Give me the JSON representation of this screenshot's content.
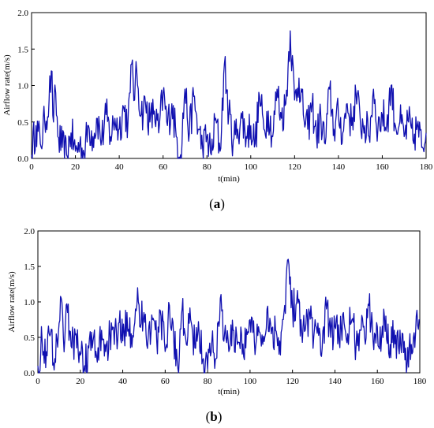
{
  "chart_data": [
    {
      "type": "line",
      "panel_label": "a",
      "xlabel": "t(min)",
      "ylabel": "Airflow rate(m/s)",
      "xlim": [
        0,
        180
      ],
      "ylim": [
        0,
        2.0
      ],
      "x_ticks": [
        "0",
        "20",
        "40",
        "60",
        "80",
        "100",
        "120",
        "140",
        "160",
        "180"
      ],
      "y_ticks": [
        "0.0",
        "0.5",
        "1.0",
        "1.5",
        "2.0"
      ],
      "grid": false,
      "color": "#1010b0",
      "x": [
        0,
        2,
        4,
        6,
        8,
        9,
        10,
        11,
        12,
        14,
        16,
        18,
        20,
        22,
        24,
        26,
        28,
        30,
        32,
        34,
        36,
        38,
        40,
        42,
        44,
        45,
        46,
        47,
        48,
        50,
        52,
        54,
        56,
        58,
        60,
        62,
        64,
        66,
        68,
        70,
        72,
        74,
        76,
        78,
        80,
        82,
        84,
        86,
        88,
        90,
        92,
        94,
        96,
        98,
        100,
        102,
        104,
        106,
        108,
        110,
        112,
        114,
        116,
        118,
        120,
        122,
        124,
        126,
        128,
        130,
        132,
        134,
        136,
        138,
        140,
        142,
        144,
        146,
        148,
        150,
        152,
        154,
        156,
        158,
        160,
        162,
        164,
        166,
        168,
        170,
        172,
        174,
        176,
        178,
        180
      ],
      "values": [
        0.05,
        0.45,
        0.2,
        0.5,
        0.8,
        1.2,
        0.5,
        0.9,
        0.3,
        0.15,
        0.05,
        0.35,
        0.1,
        0.2,
        0.05,
        0.45,
        0.3,
        0.55,
        0.25,
        0.6,
        0.3,
        0.55,
        0.4,
        0.7,
        0.5,
        0.9,
        1.35,
        0.8,
        1.2,
        0.6,
        0.75,
        0.5,
        0.65,
        0.35,
        0.9,
        0.45,
        0.75,
        0.3,
        0.05,
        0.95,
        0.35,
        0.85,
        0.4,
        0.15,
        0.3,
        0.05,
        0.55,
        0.1,
        1.3,
        0.6,
        0.25,
        0.4,
        0.55,
        0.3,
        0.45,
        0.2,
        0.85,
        0.4,
        0.65,
        0.3,
        0.95,
        0.55,
        0.75,
        1.75,
        0.8,
        1.1,
        0.6,
        0.4,
        0.75,
        0.3,
        0.55,
        0.2,
        0.95,
        0.4,
        0.6,
        0.35,
        0.75,
        0.45,
        0.9,
        0.5,
        0.45,
        0.3,
        0.95,
        0.4,
        0.6,
        0.45,
        1.0,
        0.45,
        0.5,
        0.3,
        0.5,
        0.25,
        0.45,
        0.15,
        0.35
      ]
    },
    {
      "type": "line",
      "panel_label": "b",
      "xlabel": "t(min)",
      "ylabel": "Airflow rate(m/s)",
      "xlim": [
        0,
        180
      ],
      "ylim": [
        0,
        2.0
      ],
      "x_ticks": [
        "0",
        "20",
        "40",
        "60",
        "80",
        "100",
        "120",
        "140",
        "160",
        "180"
      ],
      "y_ticks": [
        "0.0",
        "0.5",
        "1.0",
        "1.5",
        "2.0"
      ],
      "grid": false,
      "color": "#1010b0",
      "x": [
        0,
        2,
        4,
        6,
        8,
        10,
        11,
        12,
        14,
        16,
        18,
        20,
        22,
        24,
        26,
        28,
        30,
        32,
        34,
        36,
        38,
        40,
        42,
        44,
        46,
        47,
        48,
        50,
        52,
        54,
        56,
        58,
        60,
        62,
        64,
        66,
        68,
        70,
        72,
        74,
        76,
        78,
        80,
        82,
        84,
        86,
        88,
        90,
        92,
        94,
        96,
        98,
        100,
        102,
        104,
        106,
        108,
        110,
        112,
        114,
        116,
        118,
        120,
        122,
        124,
        126,
        128,
        130,
        132,
        134,
        136,
        138,
        140,
        142,
        144,
        146,
        148,
        150,
        152,
        154,
        156,
        158,
        160,
        162,
        164,
        166,
        168,
        170,
        172,
        174,
        176,
        178,
        180
      ],
      "values": [
        0.1,
        0.45,
        0.3,
        0.55,
        0.2,
        0.7,
        1.05,
        0.5,
        0.85,
        0.35,
        0.55,
        0.25,
        0.1,
        0.35,
        0.45,
        0.15,
        0.6,
        0.3,
        0.55,
        0.4,
        0.7,
        0.45,
        0.85,
        0.55,
        0.9,
        1.2,
        0.65,
        0.85,
        0.5,
        0.75,
        0.45,
        0.8,
        0.3,
        0.95,
        0.5,
        0.05,
        0.9,
        0.4,
        0.75,
        0.35,
        0.55,
        0.2,
        0.05,
        0.45,
        0.2,
        1.05,
        0.55,
        0.3,
        0.6,
        0.4,
        0.55,
        0.35,
        0.75,
        0.45,
        0.65,
        0.4,
        0.9,
        0.55,
        0.6,
        0.45,
        0.85,
        1.6,
        0.9,
        1.0,
        0.75,
        0.6,
        0.85,
        0.5,
        0.7,
        0.35,
        0.9,
        0.5,
        0.65,
        0.45,
        0.85,
        0.55,
        0.75,
        0.4,
        0.6,
        0.5,
        0.95,
        0.45,
        0.65,
        0.5,
        0.8,
        0.4,
        0.6,
        0.35,
        0.55,
        0.1,
        0.4,
        0.55,
        0.75
      ]
    }
  ]
}
